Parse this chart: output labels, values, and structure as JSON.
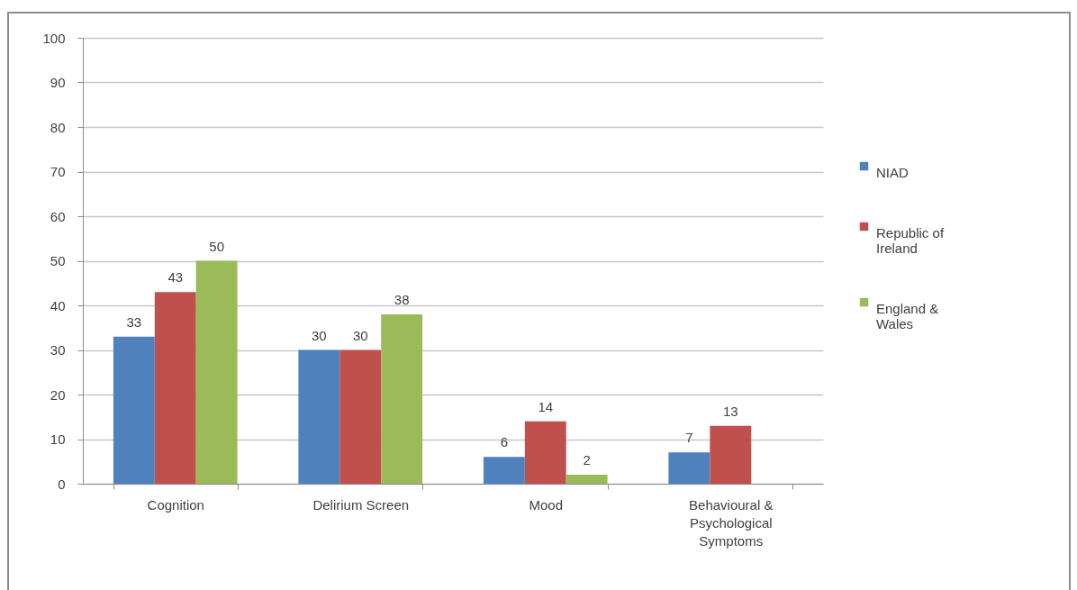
{
  "chart_data": {
    "type": "bar",
    "categories": [
      "Cognition",
      "Delirium Screen",
      "Mood",
      "Behavioural & Psychological Symptoms"
    ],
    "series": [
      {
        "name": "NIAD",
        "color": "#4f81bd",
        "values": [
          33,
          30,
          6,
          7
        ]
      },
      {
        "name": "Republic of Ireland",
        "color": "#c0504d",
        "values": [
          43,
          30,
          14,
          13
        ]
      },
      {
        "name": "England & Wales",
        "color": "#9bbb59",
        "values": [
          50,
          38,
          2,
          null
        ]
      }
    ],
    "ylim": [
      0,
      100
    ],
    "yticks": [
      0,
      10,
      20,
      30,
      40,
      50,
      60,
      70,
      80,
      90,
      100
    ],
    "grid": "y",
    "legend": "right",
    "data_labels": true
  }
}
